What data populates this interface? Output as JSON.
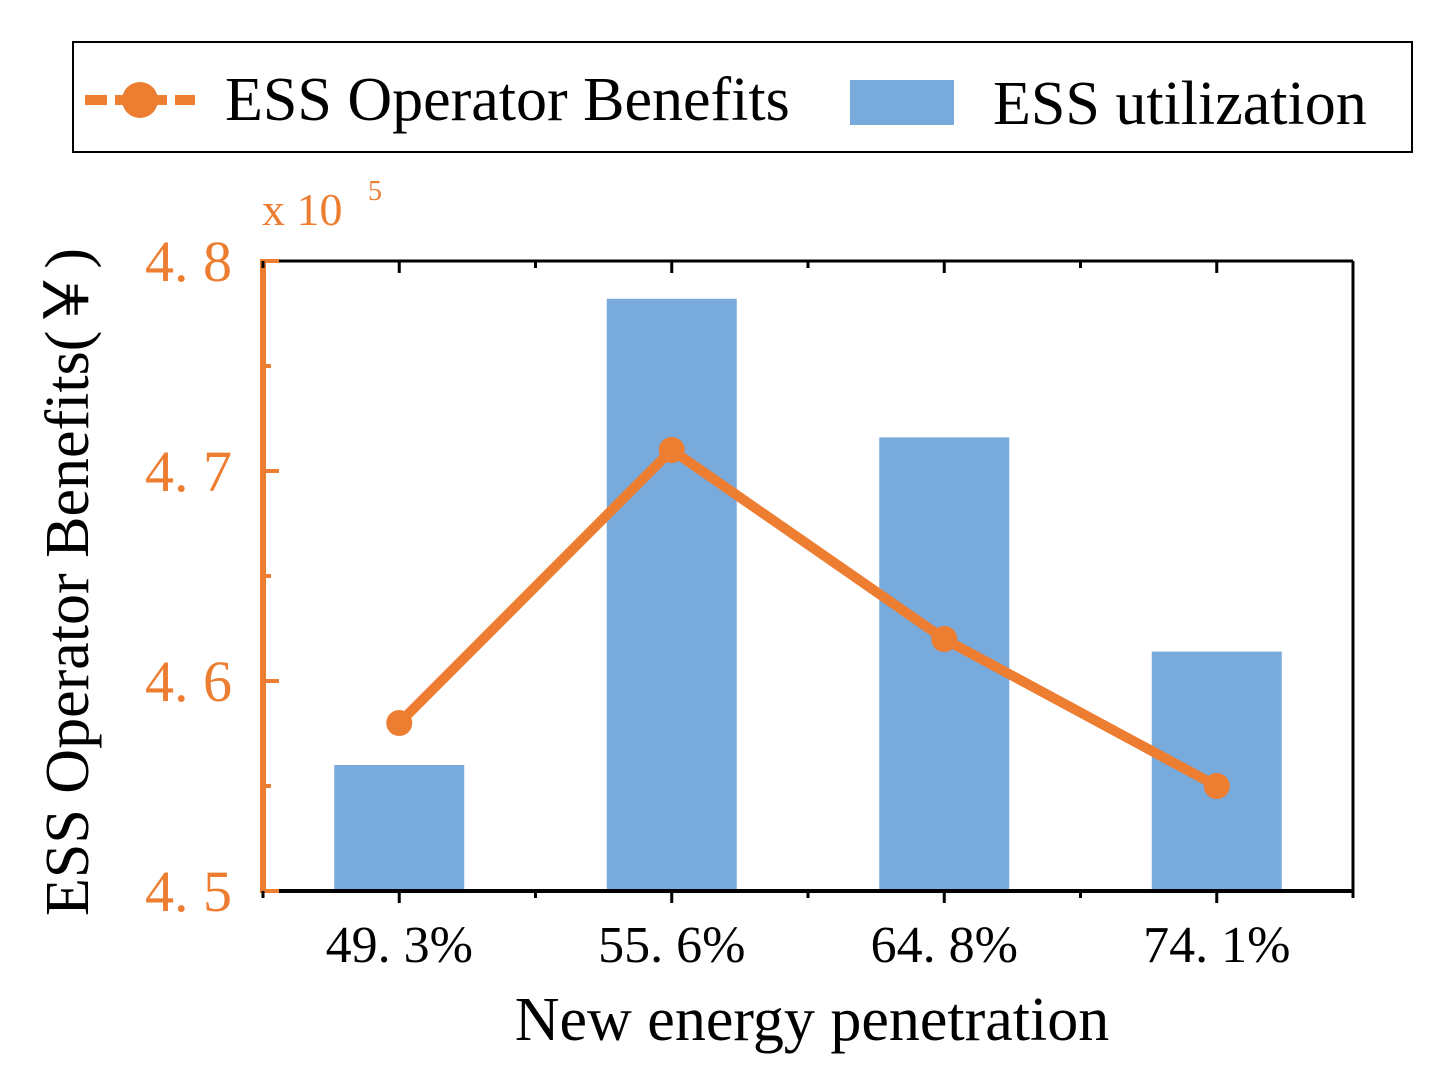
{
  "colors": {
    "bar": "#78aadb",
    "bar_edge": "#5b8fc4",
    "line": "#ed7d31",
    "axis_left": "#ed7d31",
    "axis": "#000000",
    "tick_label_left": "#ed7d31",
    "text": "#000000"
  },
  "chart_data": {
    "type": "bar",
    "title": "",
    "xlabel": "New energy penetration",
    "ylabel": "ESS Operator Benefits(￥)",
    "y_multiplier": "x 10",
    "y_multiplier_exp": "5",
    "categories": [
      "49.3%",
      "55.6%",
      "64.8%",
      "74.1%"
    ],
    "category_labels": [
      "49. 3%",
      "55. 6%",
      "64. 8%",
      "74. 1%"
    ],
    "ylim": [
      4.5,
      4.8
    ],
    "yticks": [
      4.5,
      4.6,
      4.7,
      4.8
    ],
    "ytick_labels": [
      "4. 5",
      "4. 6",
      "4. 7",
      "4. 8"
    ],
    "series": [
      {
        "name": "ESS utilization",
        "kind": "bar",
        "values": [
          4.56,
          4.782,
          4.716,
          4.614
        ]
      },
      {
        "name": "ESS Operator Benefits",
        "kind": "line",
        "marker": "circle",
        "values": [
          4.58,
          4.71,
          4.62,
          4.55
        ]
      }
    ],
    "legend": {
      "position": "top",
      "entries": [
        "ESS Operator Benefits",
        "ESS utilization"
      ]
    },
    "grid": false
  }
}
